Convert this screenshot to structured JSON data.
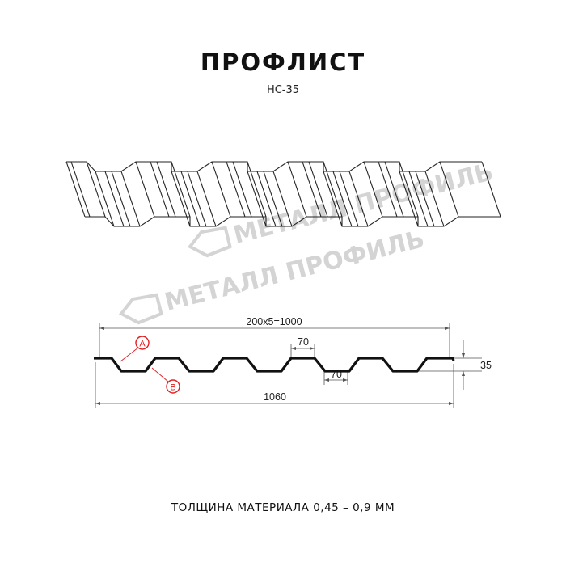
{
  "title": "ПРОФЛИСТ",
  "subtitle": "НС-35",
  "footer": "ТОЛЩИНА МАТЕРИАЛА 0,45 – 0,9 ММ",
  "watermark": "МЕТАЛЛ ПРОФИЛЬ",
  "dimensions": {
    "pitch_total": "200x5=1000",
    "total_width": "1060",
    "top_flat": "70",
    "bottom_flat": "70",
    "height": "35"
  },
  "callouts": {
    "a": "A",
    "b": "B"
  },
  "colors": {
    "profile": "#111111",
    "callout": "#e02020",
    "watermark": "#d4d4d4",
    "dimension": "#555555"
  }
}
